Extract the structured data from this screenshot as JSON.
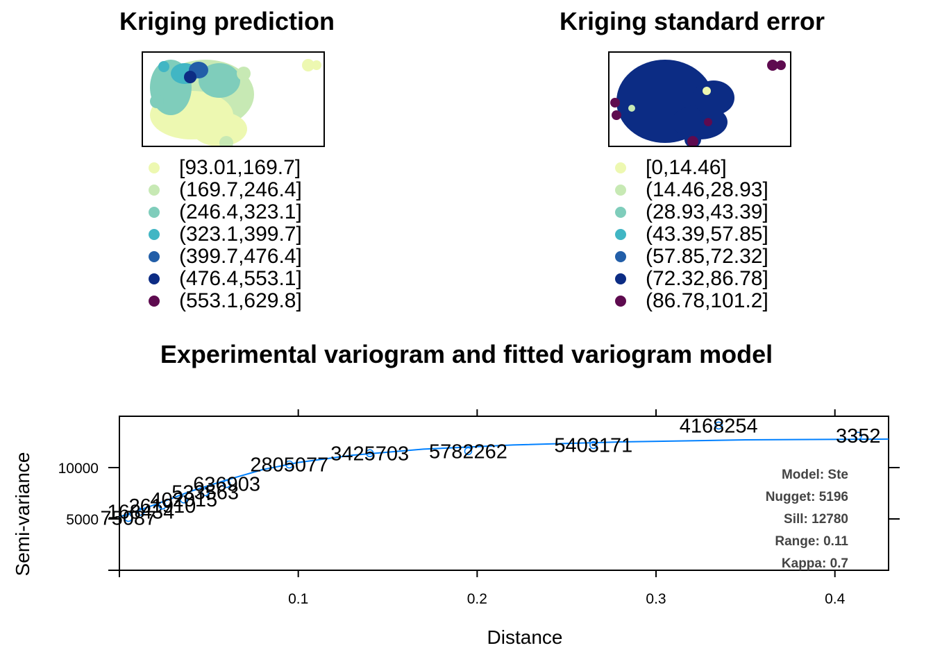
{
  "left_panel": {
    "title": "Kriging prediction",
    "legend": [
      {
        "label": "[93.01,169.7]",
        "color": "#edf8b1"
      },
      {
        "label": "(169.7,246.4]",
        "color": "#c7e9b4"
      },
      {
        "label": "(246.4,323.1]",
        "color": "#7fcdbb"
      },
      {
        "label": "(323.1,399.7]",
        "color": "#41b6c4"
      },
      {
        "label": "(399.7,476.4]",
        "color": "#225ea8"
      },
      {
        "label": "(476.4,553.1]",
        "color": "#0c2c84"
      },
      {
        "label": "(553.1,629.8]",
        "color": "#5e0b4f"
      }
    ]
  },
  "right_panel": {
    "title": "Kriging standard error",
    "legend": [
      {
        "label": "[0,14.46]",
        "color": "#edf8b1"
      },
      {
        "label": "(14.46,28.93]",
        "color": "#c7e9b4"
      },
      {
        "label": "(28.93,43.39]",
        "color": "#7fcdbb"
      },
      {
        "label": "(43.39,57.85]",
        "color": "#41b6c4"
      },
      {
        "label": "(57.85,72.32]",
        "color": "#225ea8"
      },
      {
        "label": "(72.32,86.78]",
        "color": "#0c2c84"
      },
      {
        "label": "(86.78,101.2]",
        "color": "#5e0b4f"
      }
    ]
  },
  "chart_data": {
    "type": "scatter",
    "title": "Experimental variogram and fitted variogram model",
    "xlabel": "Distance",
    "ylabel": "Semi-variance",
    "xlim": [
      0,
      0.43
    ],
    "ylim": [
      0,
      15000
    ],
    "xticks": [
      0.1,
      0.2,
      0.3,
      0.4
    ],
    "xtick_labels": [
      "0.1",
      "0.2",
      "0.3",
      "0.4"
    ],
    "yticks": [
      5000,
      10000
    ],
    "ytick_labels": [
      "5000",
      "10000"
    ],
    "line_color": "#0080ff",
    "points": [
      {
        "x": 0.005,
        "y": 5100,
        "label": "75087"
      },
      {
        "x": 0.012,
        "y": 5700,
        "label": "168434"
      },
      {
        "x": 0.024,
        "y": 6300,
        "label": "261910"
      },
      {
        "x": 0.036,
        "y": 6900,
        "label": "402015"
      },
      {
        "x": 0.048,
        "y": 7600,
        "label": "533563"
      },
      {
        "x": 0.06,
        "y": 8400,
        "label": "636903"
      },
      {
        "x": 0.095,
        "y": 10300,
        "label": "2805077"
      },
      {
        "x": 0.14,
        "y": 11400,
        "label": "3425703"
      },
      {
        "x": 0.195,
        "y": 11600,
        "label": "5782262"
      },
      {
        "x": 0.265,
        "y": 12200,
        "label": "5403171"
      },
      {
        "x": 0.335,
        "y": 14100,
        "label": "4168254"
      },
      {
        "x": 0.413,
        "y": 13100,
        "label": "3352"
      }
    ],
    "model_curve": [
      {
        "x": 0.0,
        "y": 5196
      },
      {
        "x": 0.02,
        "y": 6400
      },
      {
        "x": 0.04,
        "y": 7700
      },
      {
        "x": 0.06,
        "y": 8800
      },
      {
        "x": 0.08,
        "y": 9800
      },
      {
        "x": 0.1,
        "y": 10500
      },
      {
        "x": 0.13,
        "y": 11200
      },
      {
        "x": 0.17,
        "y": 11800
      },
      {
        "x": 0.22,
        "y": 12200
      },
      {
        "x": 0.28,
        "y": 12500
      },
      {
        "x": 0.35,
        "y": 12700
      },
      {
        "x": 0.43,
        "y": 12780
      }
    ],
    "annotations": [
      "Model: Ste",
      "Nugget: 5196",
      "Sill: 12780",
      "Range: 0.11",
      "Kappa: 0.7"
    ]
  }
}
